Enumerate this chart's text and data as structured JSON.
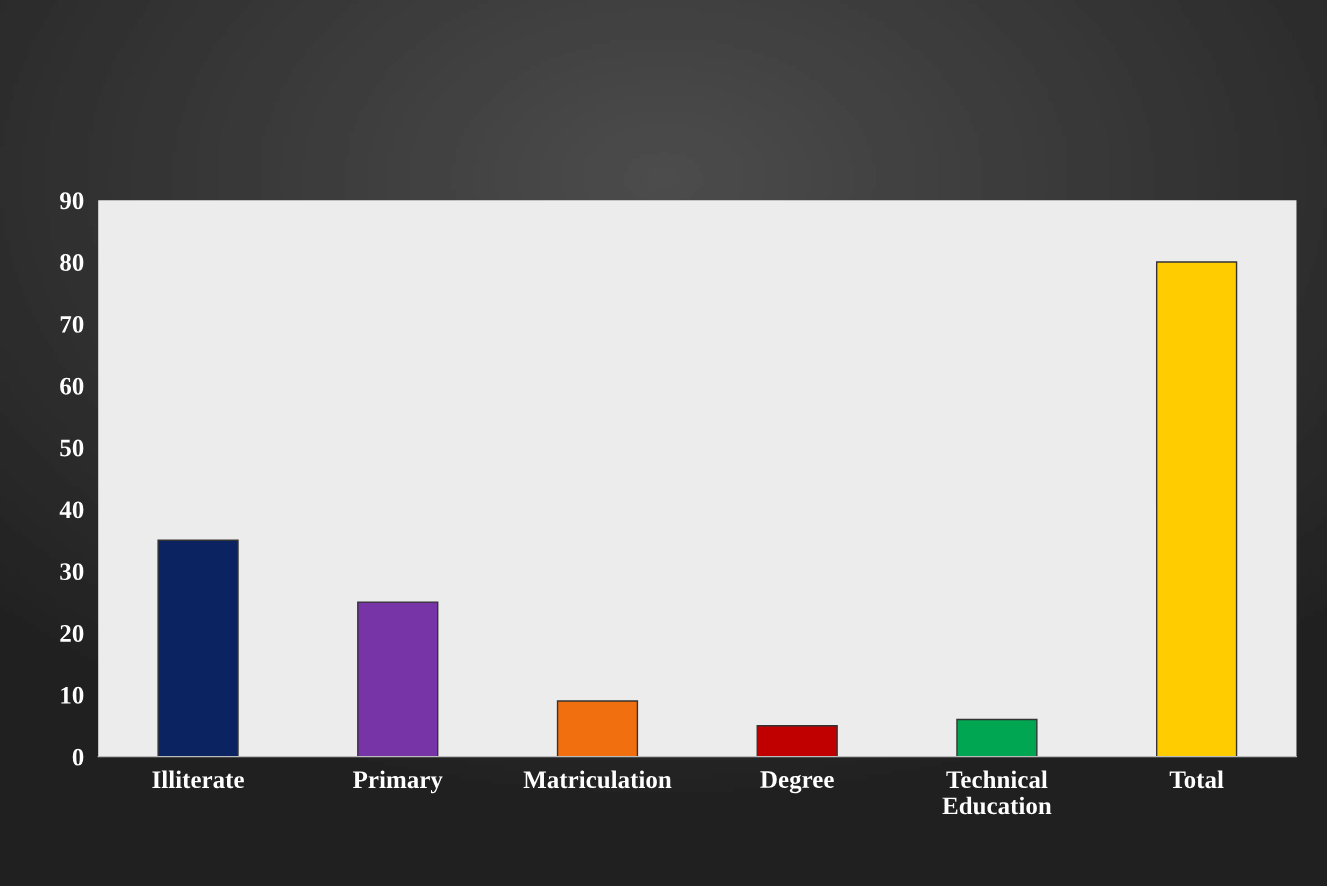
{
  "chart_data": {
    "type": "bar",
    "categories": [
      "Illiterate",
      "Primary",
      "Matriculation",
      "Degree",
      "Technical Education",
      "Total"
    ],
    "values": [
      35,
      25,
      9,
      5,
      6,
      80
    ],
    "colors": [
      "#0b2361",
      "#7634a6",
      "#f26f0f",
      "#c00000",
      "#00a651",
      "#ffcc00"
    ],
    "ylim": [
      0,
      90
    ],
    "yticks": [
      0,
      10,
      20,
      30,
      40,
      50,
      60,
      70,
      80,
      90
    ],
    "grid": false
  }
}
